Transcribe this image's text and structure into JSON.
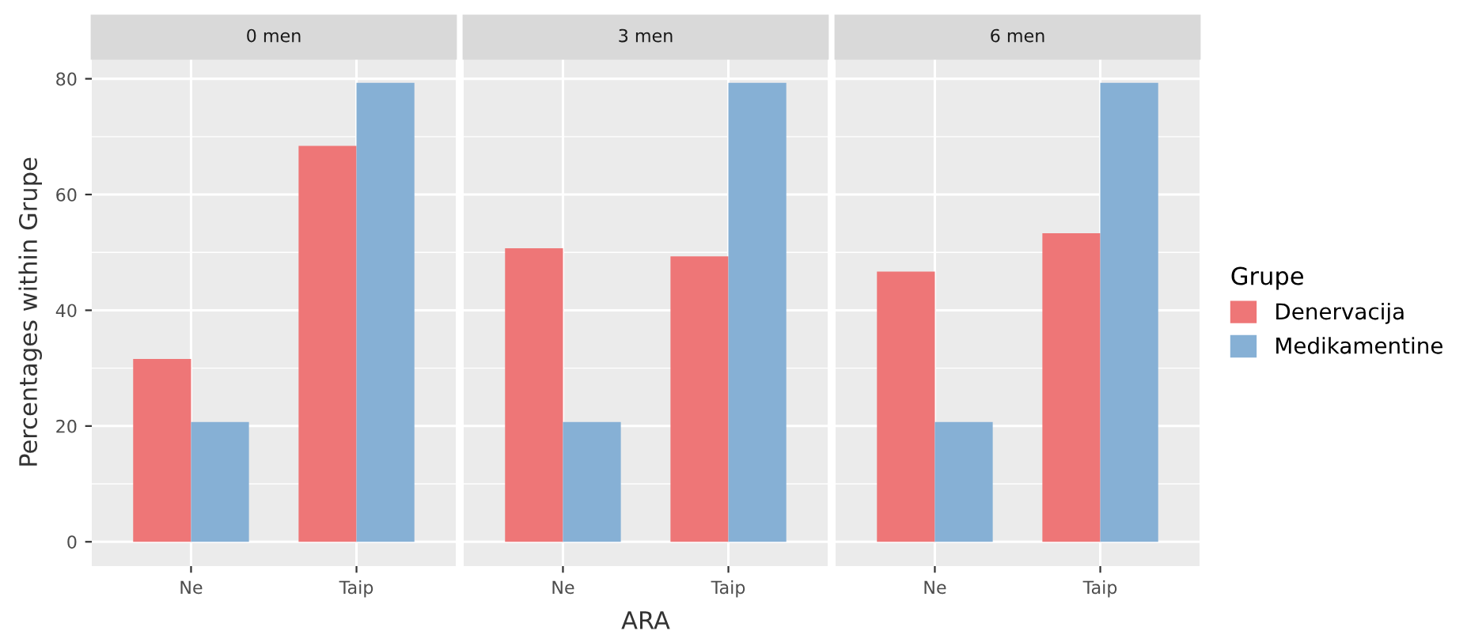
{
  "chart_data": [
    {
      "type": "bar",
      "title": "0 men",
      "ylabel": "Percentages within Grupe",
      "categories": [
        "Ne",
        "Taip"
      ],
      "ylim": [
        -4.2,
        83.5
      ],
      "yticks": [
        0,
        20,
        40,
        60,
        80
      ],
      "grid": true,
      "series": [
        {
          "color": "#ee7677",
          "values": [
            31.6,
            68.4
          ]
        },
        {
          "color": "#86b0d5",
          "values": [
            20.7,
            79.3
          ]
        }
      ]
    },
    {
      "type": "bar",
      "title": "3 men",
      "xlabel": "ARA",
      "categories": [
        "Ne",
        "Taip"
      ],
      "ylim": [
        -4.2,
        83.5
      ],
      "yticks": [
        0,
        20,
        40,
        60,
        80
      ],
      "grid": true,
      "tick_labels": "x",
      "series": [
        {
          "color": "#ee7677",
          "values": [
            50.7,
            49.3
          ]
        },
        {
          "color": "#86b0d5",
          "values": [
            20.7,
            79.3
          ]
        }
      ]
    },
    {
      "type": "bar",
      "title": "6 men",
      "categories": [
        "Ne",
        "Taip"
      ],
      "ylim": [
        -4.2,
        83.5
      ],
      "yticks": [
        0,
        20,
        40,
        60,
        80
      ],
      "grid": true,
      "tick_labels": "x",
      "legend": "right",
      "legend_title": "Grupe",
      "series": [
        {
          "name": "Denervacija",
          "color": "#ee7677",
          "values": [
            46.7,
            53.3
          ]
        },
        {
          "name": "Medikamentine",
          "color": "#86b0d5",
          "values": [
            20.7,
            79.3
          ]
        }
      ]
    }
  ]
}
